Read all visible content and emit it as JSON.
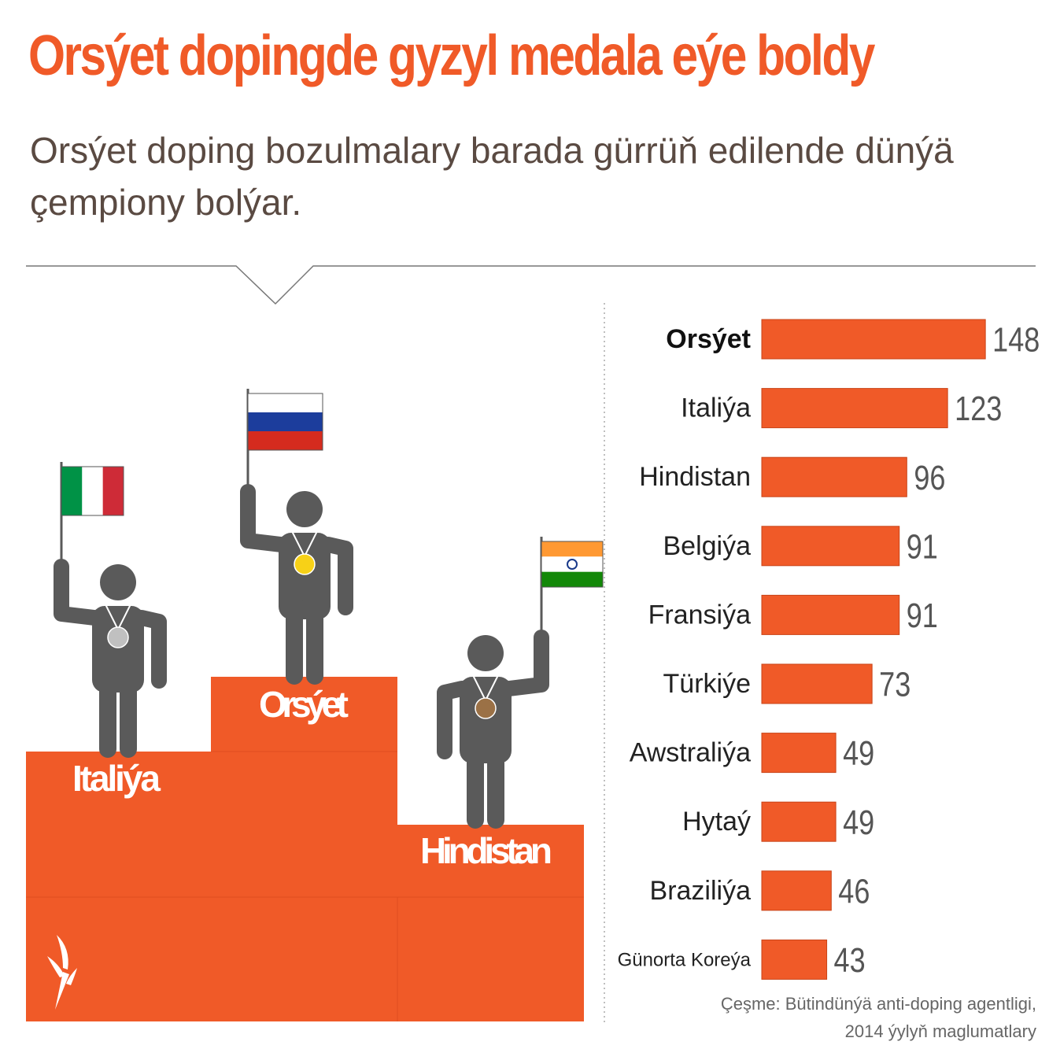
{
  "title": "Orsýet dopingde gyzyl medala eýe boldy",
  "subtitle": "Orsýet doping bozulmalary barada gürrüň edilende dünýä çempiony bolýar.",
  "source": "Çeşme: Bütindünýä anti-doping agentligi, 2014 ýylyň maglumatlary",
  "chart_data": {
    "type": "bar",
    "orientation": "horizontal",
    "color": "#f05a28",
    "categories": [
      "Orsýet",
      "Italiýa",
      "Hindistan",
      "Belgiýa",
      "Fransiýa",
      "Türkiýe",
      "Awstraliýa",
      "Hytaý",
      "Braziliýa",
      "Günorta Koreýa"
    ],
    "values": [
      148,
      123,
      96,
      91,
      91,
      73,
      49,
      49,
      46,
      43
    ]
  }
}
